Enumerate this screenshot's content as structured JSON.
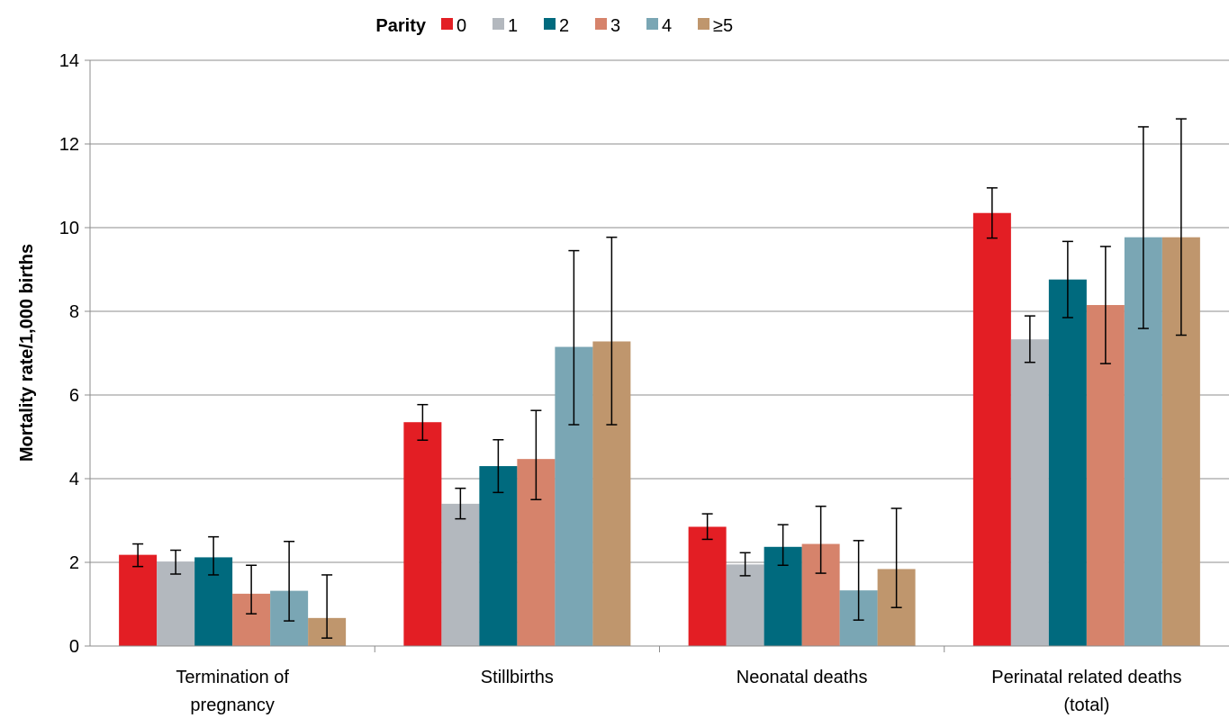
{
  "chart_data": {
    "type": "bar",
    "legend_title": "Parity",
    "legend_position": "top",
    "ylabel": "Mortality rate/1,000 births",
    "ylim": [
      0,
      14
    ],
    "yticks": [
      0,
      2,
      4,
      6,
      8,
      10,
      12,
      14
    ],
    "grid": true,
    "error_bars": true,
    "categories": [
      [
        "Termination of",
        "pregnancy"
      ],
      [
        "Stillbirths"
      ],
      [
        "Neonatal deaths"
      ],
      [
        "Perinatal related deaths",
        "(total)"
      ]
    ],
    "series": [
      {
        "name": "0",
        "color": "#e31e24",
        "values": [
          2.18,
          5.35,
          2.85,
          10.35
        ],
        "lower": [
          1.9,
          4.92,
          2.55,
          9.75
        ],
        "upper": [
          2.44,
          5.77,
          3.16,
          10.95
        ]
      },
      {
        "name": "1",
        "color": "#b3b8be",
        "values": [
          2.02,
          3.4,
          1.95,
          7.33
        ],
        "lower": [
          1.72,
          3.04,
          1.68,
          6.78
        ],
        "upper": [
          2.29,
          3.77,
          2.23,
          7.89
        ]
      },
      {
        "name": "2",
        "color": "#006a7e",
        "values": [
          2.12,
          4.3,
          2.37,
          8.76
        ],
        "lower": [
          1.7,
          3.67,
          1.93,
          7.85
        ],
        "upper": [
          2.61,
          4.93,
          2.9,
          9.67
        ]
      },
      {
        "name": "3",
        "color": "#d6836b",
        "values": [
          1.25,
          4.47,
          2.44,
          8.15
        ],
        "lower": [
          0.77,
          3.5,
          1.74,
          6.75
        ],
        "upper": [
          1.93,
          5.63,
          3.34,
          9.55
        ]
      },
      {
        "name": "4",
        "color": "#7aa6b4",
        "values": [
          1.32,
          7.15,
          1.33,
          9.77
        ],
        "lower": [
          0.6,
          5.29,
          0.62,
          7.59
        ],
        "upper": [
          2.5,
          9.45,
          2.52,
          12.41
        ]
      },
      {
        "name": "≥5",
        "color": "#bf966d",
        "values": [
          0.67,
          7.28,
          1.84,
          9.77
        ],
        "lower": [
          0.19,
          5.29,
          0.92,
          7.43
        ],
        "upper": [
          1.7,
          9.77,
          3.29,
          12.6
        ]
      }
    ]
  }
}
